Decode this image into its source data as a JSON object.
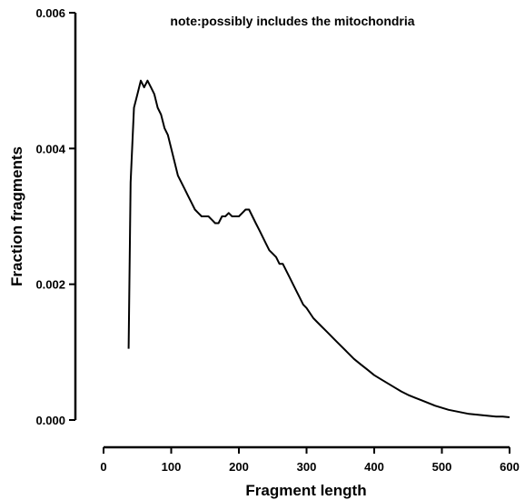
{
  "chart_data": {
    "type": "line",
    "title": "",
    "annotation": "note:possibly includes the mitochondria",
    "xlabel": "Fragment length",
    "ylabel": "Fraction fragments",
    "xlim": [
      0,
      600
    ],
    "ylim": [
      0,
      0.006
    ],
    "x_ticks": [
      "0",
      "100",
      "200",
      "300",
      "400",
      "500",
      "600"
    ],
    "y_ticks": [
      "0.000",
      "0.002",
      "0.004",
      "0.006"
    ],
    "grid": false,
    "legend": "none",
    "line_color": "#000000",
    "series": [
      {
        "x": [
          37,
          40,
          45,
          50,
          55,
          60,
          65,
          70,
          75,
          80,
          85,
          90,
          95,
          100,
          105,
          110,
          115,
          120,
          125,
          130,
          135,
          140,
          145,
          150,
          155,
          160,
          165,
          170,
          175,
          180,
          185,
          190,
          195,
          200,
          205,
          210,
          215,
          220,
          225,
          230,
          235,
          240,
          245,
          250,
          255,
          260,
          265,
          270,
          275,
          280,
          285,
          290,
          295,
          300,
          310,
          320,
          330,
          340,
          350,
          360,
          370,
          380,
          390,
          400,
          410,
          420,
          430,
          440,
          450,
          460,
          470,
          480,
          490,
          500,
          510,
          520,
          530,
          540,
          550,
          560,
          570,
          580,
          590,
          600
        ],
        "values": [
          0.00105,
          0.0035,
          0.0046,
          0.0048,
          0.005,
          0.0049,
          0.005,
          0.0049,
          0.0048,
          0.0046,
          0.0045,
          0.0043,
          0.0042,
          0.004,
          0.0038,
          0.0036,
          0.0035,
          0.0034,
          0.0033,
          0.0032,
          0.0031,
          0.00305,
          0.003,
          0.003,
          0.003,
          0.00295,
          0.0029,
          0.0029,
          0.003,
          0.003,
          0.00305,
          0.003,
          0.003,
          0.003,
          0.00305,
          0.0031,
          0.0031,
          0.003,
          0.0029,
          0.0028,
          0.0027,
          0.0026,
          0.0025,
          0.00245,
          0.0024,
          0.0023,
          0.0023,
          0.0022,
          0.0021,
          0.002,
          0.0019,
          0.0018,
          0.0017,
          0.00165,
          0.0015,
          0.0014,
          0.0013,
          0.0012,
          0.0011,
          0.001,
          0.0009,
          0.00082,
          0.00074,
          0.00066,
          0.0006,
          0.00054,
          0.00048,
          0.00042,
          0.00037,
          0.00033,
          0.00029,
          0.00025,
          0.00021,
          0.00018,
          0.00015,
          0.00013,
          0.00011,
          9e-05,
          8e-05,
          7e-05,
          6e-05,
          5e-05,
          5e-05,
          4e-05
        ]
      }
    ]
  }
}
